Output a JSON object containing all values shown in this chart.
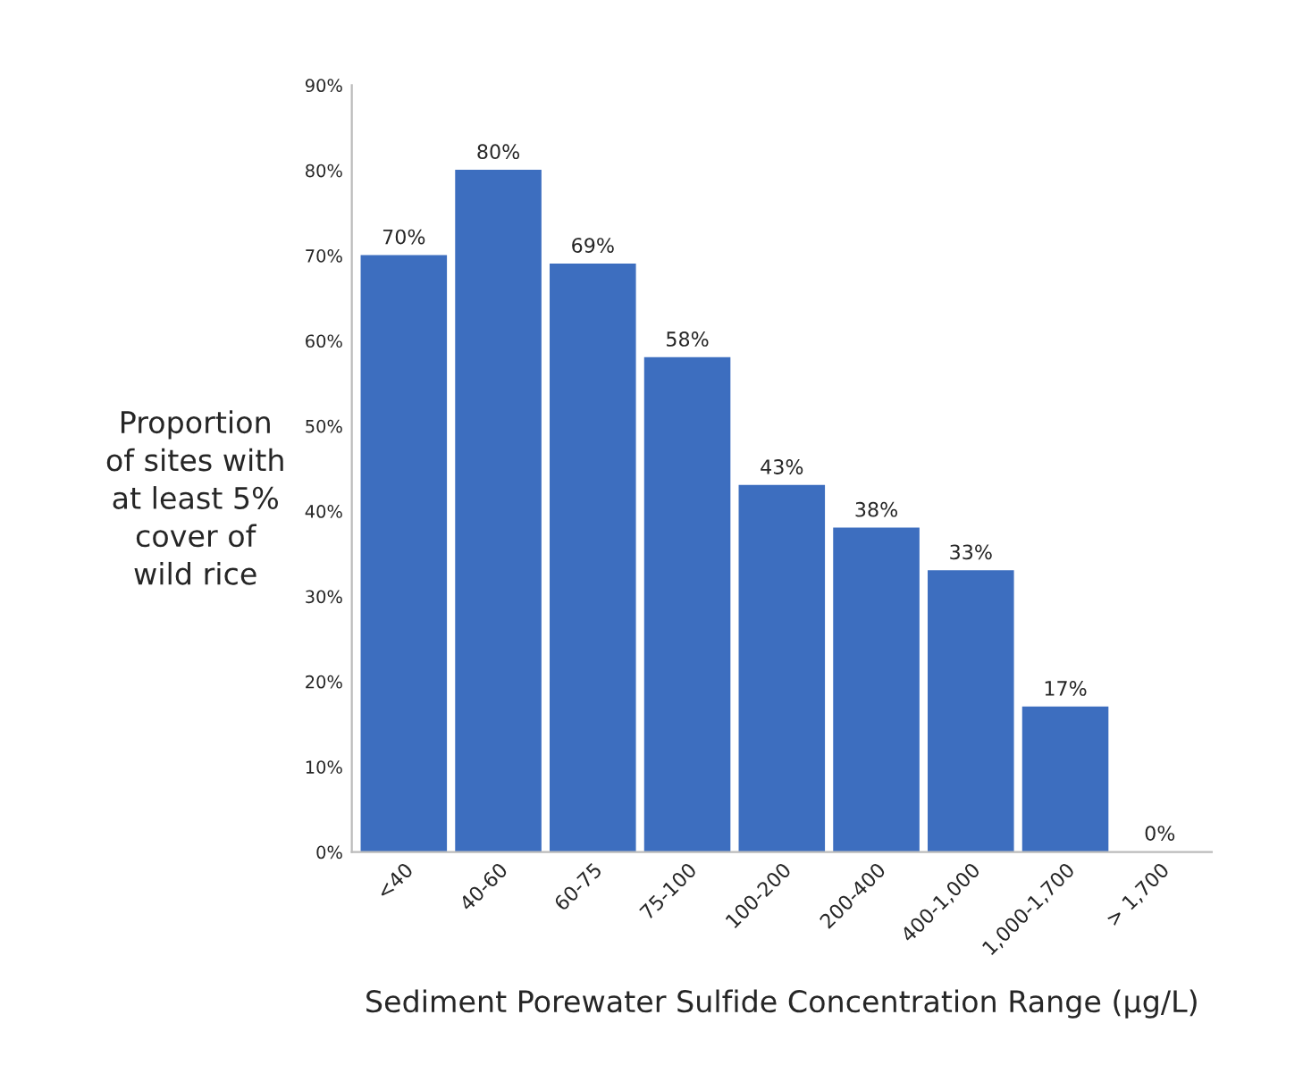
{
  "chart_data": {
    "type": "bar",
    "xlabel": "Sediment Porewater Sulfide Concentration Range (µg/L)",
    "ylabel": "Proportion\nof sites with\nat least 5%\ncover of\nwild rice",
    "categories": [
      "<40",
      "40-60",
      "60-75",
      "75-100",
      "100-200",
      "200-400",
      "400-1,000",
      "1,000-1,700",
      "> 1,700"
    ],
    "series": [
      {
        "color": "#3d6ebf",
        "values": [
          70,
          80,
          69,
          58,
          43,
          38,
          33,
          17,
          0
        ],
        "value_labels": [
          "70%",
          "80%",
          "69%",
          "58%",
          "43%",
          "38%",
          "33%",
          "17%",
          "0%"
        ]
      }
    ],
    "ylim": [
      0,
      90
    ],
    "yticks": [
      {
        "value": 0,
        "label": "0%"
      },
      {
        "value": 10,
        "label": "10%"
      },
      {
        "value": 20,
        "label": "20%"
      },
      {
        "value": 30,
        "label": "30%"
      },
      {
        "value": 40,
        "label": "40%"
      },
      {
        "value": 50,
        "label": "50%"
      },
      {
        "value": 60,
        "label": "60%"
      },
      {
        "value": 70,
        "label": "70%"
      },
      {
        "value": 80,
        "label": "80%"
      },
      {
        "value": 90,
        "label": "90%"
      }
    ],
    "grid": false,
    "legend": false
  }
}
